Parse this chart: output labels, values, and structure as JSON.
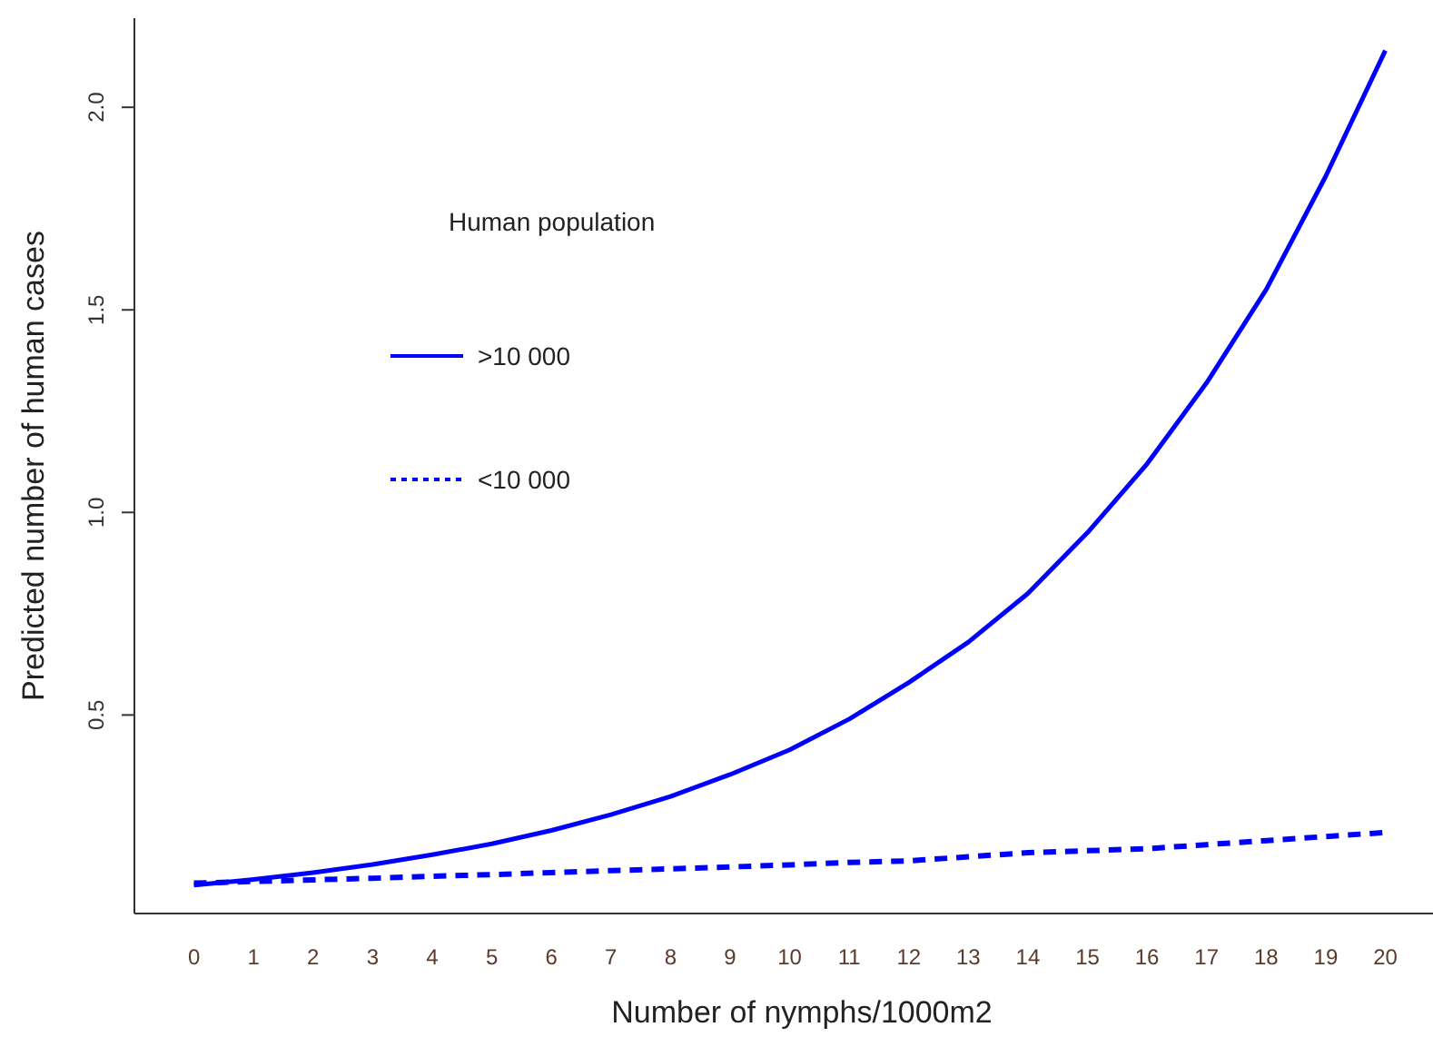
{
  "chart_data": {
    "type": "line",
    "xlabel": "Number of nymphs/1000m2",
    "ylabel": "Predicted number of human cases",
    "legend_title": "Human population",
    "legend": "top left",
    "x": [
      0,
      1,
      2,
      3,
      4,
      5,
      6,
      7,
      8,
      9,
      10,
      11,
      12,
      13,
      14,
      15,
      16,
      17,
      18,
      19,
      20
    ],
    "xlim": [
      -1,
      20.8
    ],
    "xticks": [
      0,
      1,
      2,
      3,
      4,
      5,
      6,
      7,
      8,
      9,
      10,
      11,
      12,
      13,
      14,
      15,
      16,
      17,
      18,
      19,
      20
    ],
    "ylim": [
      0.01,
      2.22
    ],
    "yticks": [
      {
        "value": 0.5,
        "label": "0.5"
      },
      {
        "value": 1,
        "label": "1.0"
      },
      {
        "value": 1.5,
        "label": "1.5"
      },
      {
        "value": 2,
        "label": "2.0"
      }
    ],
    "series": [
      {
        "name": ">10 000",
        "color": "#0000ff",
        "line_style": "solid",
        "values": [
          0.08,
          0.094,
          0.111,
          0.131,
          0.155,
          0.182,
          0.215,
          0.254,
          0.299,
          0.353,
          0.414,
          0.49,
          0.58,
          0.68,
          0.8,
          0.95,
          1.12,
          1.32,
          1.55,
          1.83,
          2.14
        ]
      },
      {
        "name": "<10 000",
        "color": "#0000ff",
        "line_style": "dashed",
        "values": [
          0.085,
          0.089,
          0.093,
          0.097,
          0.102,
          0.106,
          0.111,
          0.116,
          0.12,
          0.125,
          0.13,
          0.136,
          0.14,
          0.15,
          0.16,
          0.165,
          0.17,
          0.18,
          0.19,
          0.2,
          0.21
        ]
      }
    ]
  }
}
